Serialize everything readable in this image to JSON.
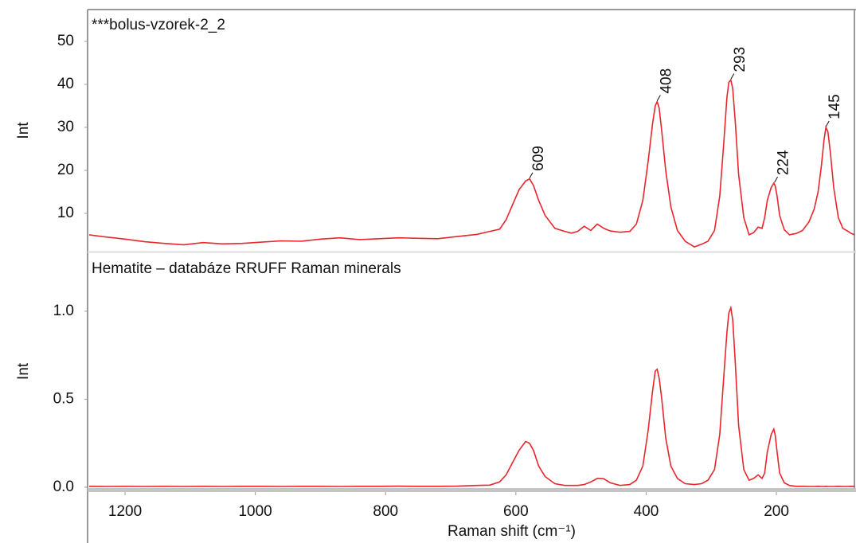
{
  "chart_data": [
    {
      "type": "line",
      "title": "***bolus-vzorek-2_2",
      "y_label": "Int",
      "color": "#e8262c",
      "xlim": [
        1257.5,
        77.8
      ],
      "ylim": [
        1.1,
        57.4
      ],
      "yticks": [
        10,
        20,
        30,
        40,
        50
      ],
      "x": [
        1255,
        1230,
        1200,
        1170,
        1140,
        1110,
        1080,
        1050,
        1020,
        990,
        960,
        930,
        900,
        870,
        840,
        810,
        780,
        750,
        720,
        690,
        660,
        640,
        625,
        615,
        605,
        595,
        585,
        579,
        573,
        565,
        555,
        540,
        525,
        515,
        505,
        495,
        485,
        475,
        465,
        455,
        440,
        425,
        415,
        405,
        397,
        390,
        386,
        383,
        380,
        376,
        370,
        362,
        352,
        340,
        326,
        315,
        305,
        295,
        287,
        281,
        276,
        273,
        270,
        267,
        263,
        258,
        250,
        242,
        235,
        228,
        222,
        218,
        214,
        208,
        204,
        202,
        199,
        195,
        188,
        180,
        170,
        160,
        150,
        142,
        136,
        131,
        127,
        124,
        121,
        117,
        112,
        105,
        98,
        90,
        85,
        80
      ],
      "values": [
        5.0,
        4.5,
        4.0,
        3.4,
        3.0,
        2.7,
        3.2,
        2.9,
        3.0,
        3.3,
        3.6,
        3.5,
        4.0,
        4.3,
        3.9,
        4.1,
        4.3,
        4.2,
        4.1,
        4.6,
        5.1,
        5.8,
        6.3,
        8.5,
        12.0,
        15.5,
        17.5,
        18.0,
        16.5,
        13.0,
        9.5,
        6.5,
        5.8,
        5.4,
        5.8,
        7.0,
        6.0,
        7.5,
        6.5,
        5.9,
        5.6,
        5.8,
        7.5,
        13.0,
        22.0,
        31.0,
        35.0,
        36.0,
        34.5,
        29.0,
        20.0,
        11.5,
        6.0,
        3.5,
        2.2,
        2.8,
        3.5,
        6.0,
        14.0,
        26.0,
        37.0,
        40.5,
        41.0,
        39.0,
        31.0,
        19.0,
        9.0,
        5.0,
        5.5,
        6.8,
        6.5,
        9.0,
        13.0,
        16.0,
        17.0,
        16.5,
        14.0,
        9.5,
        6.2,
        5.0,
        5.3,
        6.0,
        8.0,
        11.0,
        15.0,
        21.0,
        27.0,
        30.0,
        29.0,
        24.0,
        16.0,
        9.0,
        6.5,
        5.8,
        5.3,
        5.0
      ],
      "annotations": [
        {
          "label": "609",
          "x": 579,
          "y": 18
        },
        {
          "label": "408",
          "x": 383,
          "y": 36
        },
        {
          "label": "293",
          "x": 270,
          "y": 41
        },
        {
          "label": "224",
          "x": 203,
          "y": 17
        },
        {
          "label": "145",
          "x": 124,
          "y": 30
        }
      ]
    },
    {
      "type": "line",
      "title": "Hematite – databáze RRUFF Raman minerals",
      "y_label": "Int",
      "x_label": "Raman shift (cm⁻¹)",
      "color": "#e8262c",
      "xlim": [
        1257.5,
        77.8
      ],
      "ylim": [
        -0.014,
        1.33
      ],
      "xticks": [
        1200,
        1000,
        800,
        600,
        400,
        200
      ],
      "yticks": [
        {
          "value": 0,
          "label": "0.0"
        },
        {
          "value": 0.5,
          "label": "0.5"
        },
        {
          "value": 1,
          "label": "1.0"
        }
      ],
      "x": [
        1255,
        1230,
        1200,
        1170,
        1140,
        1110,
        1080,
        1050,
        1020,
        990,
        960,
        930,
        900,
        870,
        840,
        810,
        780,
        750,
        720,
        690,
        660,
        640,
        625,
        615,
        605,
        595,
        585,
        579,
        573,
        565,
        555,
        540,
        525,
        515,
        505,
        495,
        485,
        475,
        465,
        455,
        440,
        425,
        415,
        405,
        397,
        390,
        386,
        383,
        380,
        376,
        370,
        362,
        352,
        340,
        326,
        315,
        305,
        295,
        287,
        281,
        276,
        273,
        270,
        267,
        263,
        258,
        250,
        242,
        235,
        228,
        222,
        218,
        214,
        208,
        204,
        202,
        199,
        195,
        188,
        180,
        170,
        160,
        150,
        142,
        136,
        131,
        127,
        124,
        121,
        117,
        112,
        105,
        98,
        90,
        85,
        80
      ],
      "values": [
        0.005,
        0.004,
        0.005,
        0.004,
        0.005,
        0.004,
        0.005,
        0.004,
        0.005,
        0.005,
        0.004,
        0.005,
        0.005,
        0.004,
        0.005,
        0.005,
        0.006,
        0.005,
        0.005,
        0.006,
        0.01,
        0.012,
        0.03,
        0.07,
        0.14,
        0.21,
        0.26,
        0.25,
        0.21,
        0.12,
        0.06,
        0.02,
        0.01,
        0.01,
        0.01,
        0.015,
        0.03,
        0.05,
        0.048,
        0.025,
        0.01,
        0.015,
        0.04,
        0.12,
        0.32,
        0.55,
        0.66,
        0.67,
        0.62,
        0.5,
        0.28,
        0.12,
        0.05,
        0.02,
        0.015,
        0.02,
        0.04,
        0.1,
        0.3,
        0.62,
        0.88,
        0.99,
        1.02,
        0.95,
        0.7,
        0.35,
        0.1,
        0.04,
        0.05,
        0.07,
        0.05,
        0.08,
        0.2,
        0.3,
        0.33,
        0.3,
        0.2,
        0.08,
        0.025,
        0.01,
        0.005,
        0.005,
        0.004,
        0.004,
        0.005,
        0.004,
        0.004,
        0.005,
        0.004,
        0.004,
        0.004,
        0.005,
        0.004,
        0.004,
        0.005,
        0.004
      ]
    }
  ]
}
